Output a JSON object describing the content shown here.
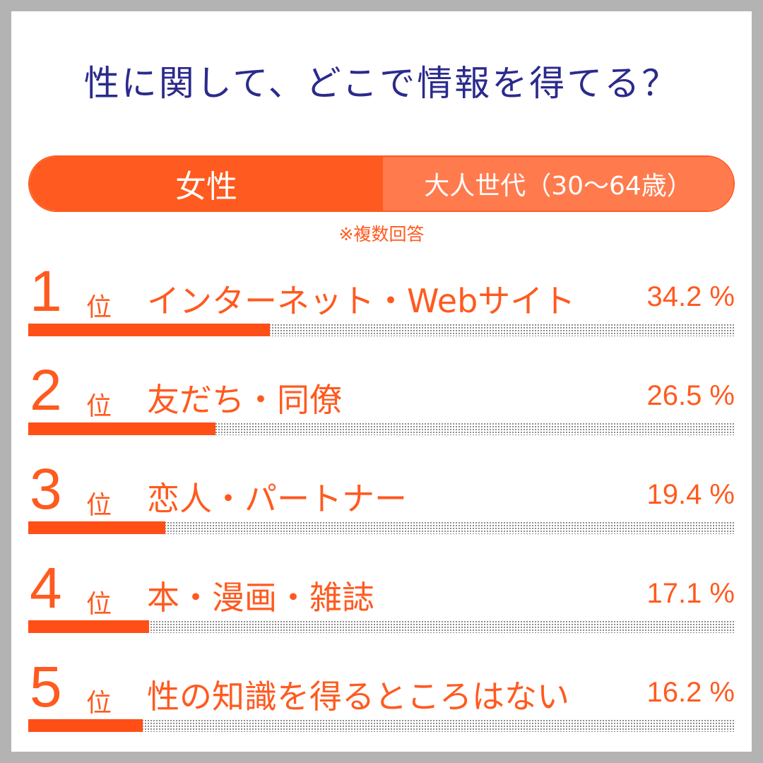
{
  "title": "性に関して、どこで情報を得てる？",
  "segment": {
    "gender": "女性",
    "generation": "大人世代（30〜64歳）"
  },
  "note": "※複数回答",
  "rank_suffix": "位",
  "colors": {
    "accent": "#ff5a1f",
    "accent_light": "#ff7b4e",
    "title": "#2b2a8c",
    "border": "#b3b3b3"
  },
  "chart_data": {
    "type": "bar",
    "title": "性に関して、どこで情報を得てる？",
    "categories": [
      "インターネット・Webサイト",
      "友だち・同僚",
      "恋人・パートナー",
      "本・漫画・雑誌",
      "性の知識を得るところはない"
    ],
    "values": [
      34.2,
      26.5,
      19.4,
      17.1,
      16.2
    ],
    "value_labels": [
      "34.2 %",
      "26.5 %",
      "19.4 %",
      "17.1 %",
      "16.2 %"
    ],
    "ranks": [
      "1",
      "2",
      "3",
      "4",
      "5"
    ],
    "ylim": [
      0,
      100
    ],
    "orientation": "horizontal",
    "grid": false
  }
}
